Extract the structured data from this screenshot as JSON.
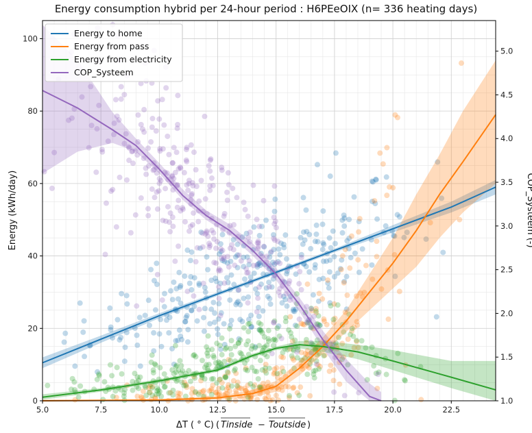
{
  "chart_data": {
    "type": "scatter",
    "title": "Energy consumption hybrid per 24-hour period : H6PEeOIX (n= 336 heating days)",
    "xlabel": "ΔT ( ° C)",
    "xlabel_formula_a": "Tinside",
    "xlabel_formula_b": "Toutside",
    "ylabel": "Energy (kWh/day)",
    "ylabel_right": "COP_Systeem (-)",
    "xlim": [
      5.0,
      24.4
    ],
    "ylim": [
      0,
      105
    ],
    "ylim_right": [
      1.0,
      5.35
    ],
    "x_ticks": [
      5.0,
      7.5,
      10.0,
      12.5,
      15.0,
      17.5,
      20.0,
      22.5
    ],
    "x_tick_labels": [
      "5.0",
      "7.5",
      "10.0",
      "12.5",
      "15.0",
      "17.5",
      "20.0",
      "22.5"
    ],
    "y_ticks": [
      0,
      20,
      40,
      60,
      80,
      100
    ],
    "y_tick_labels": [
      "0",
      "20",
      "40",
      "60",
      "80",
      "100"
    ],
    "y_right_ticks": [
      1.0,
      1.5,
      2.0,
      2.5,
      3.0,
      3.5,
      4.0,
      4.5,
      5.0
    ],
    "y_right_tick_labels": [
      "1.0",
      "1.5",
      "2.0",
      "2.5",
      "3.0",
      "3.5",
      "4.0",
      "4.5",
      "5.0"
    ],
    "grid": true,
    "legend_position": "top-left",
    "series": [
      {
        "name": "Energy to home",
        "color": "#1f77b4",
        "axis": "left",
        "trend_x": [
          5.0,
          7.5,
          10.0,
          12.5,
          15.0,
          17.5,
          20.0,
          22.5,
          24.4
        ],
        "trend_y": [
          10.5,
          17.0,
          23.5,
          29.5,
          35.5,
          41.5,
          47.5,
          53.5,
          59.0
        ],
        "band_lower": [
          9.0,
          16.0,
          22.8,
          29.0,
          35.0,
          41.0,
          46.5,
          52.0,
          57.0
        ],
        "band_upper": [
          12.0,
          18.0,
          24.2,
          30.0,
          36.0,
          42.0,
          48.5,
          55.0,
          61.0
        ],
        "scatter_center": [
          14.0,
          30.0
        ],
        "scatter_spread": [
          3.5,
          8.0
        ],
        "scatter_count": 330
      },
      {
        "name": "Energy from pass",
        "color": "#ff7f0e",
        "axis": "left",
        "trend_x": [
          5.0,
          10.0,
          12.5,
          14.0,
          15.0,
          16.0,
          17.0,
          18.0,
          19.0,
          20.0,
          21.0,
          22.0,
          23.0,
          24.4
        ],
        "trend_y": [
          0.0,
          0.2,
          0.8,
          2.0,
          4.0,
          9.0,
          15.0,
          22.0,
          30.0,
          38.0,
          47.0,
          57.0,
          66.0,
          79.0
        ],
        "band_lower": [
          0.0,
          0.0,
          0.3,
          1.0,
          2.5,
          7.0,
          13.0,
          19.0,
          25.0,
          31.0,
          37.0,
          45.0,
          52.0,
          60.0
        ],
        "band_upper": [
          0.3,
          0.5,
          1.3,
          3.0,
          5.5,
          11.0,
          17.5,
          25.0,
          35.0,
          45.0,
          57.0,
          68.0,
          80.0,
          94.0
        ],
        "scatter_center": [
          14.5,
          5.0
        ],
        "scatter_spread": [
          3.5,
          6.0
        ],
        "scatter_count": 300
      },
      {
        "name": "Energy from electricity",
        "color": "#2ca02c",
        "axis": "left",
        "trend_x": [
          5.0,
          7.5,
          10.0,
          12.5,
          14.0,
          15.0,
          16.0,
          17.0,
          18.5,
          20.0,
          22.5,
          24.4
        ],
        "trend_y": [
          1.0,
          3.0,
          5.5,
          8.5,
          12.5,
          14.5,
          15.5,
          15.0,
          13.5,
          11.0,
          6.5,
          3.0
        ],
        "band_lower": [
          0.3,
          2.5,
          5.0,
          8.0,
          12.0,
          14.0,
          14.5,
          13.5,
          11.5,
          8.5,
          3.5,
          0.0
        ],
        "band_upper": [
          1.8,
          3.5,
          6.0,
          9.0,
          13.0,
          15.0,
          16.5,
          16.5,
          15.5,
          14.0,
          11.0,
          11.0
        ],
        "scatter_center": [
          13.0,
          10.0
        ],
        "scatter_spread": [
          3.5,
          5.0
        ],
        "scatter_count": 330
      },
      {
        "name": "COP_Systeem",
        "color": "#9467bd",
        "axis": "right",
        "trend_x": [
          5.0,
          6.5,
          8.0,
          9.0,
          10.0,
          11.0,
          12.0,
          13.0,
          14.0,
          15.0,
          16.0,
          17.0,
          18.0,
          19.0,
          19.5
        ],
        "trend_y": [
          4.55,
          4.35,
          4.1,
          3.92,
          3.65,
          3.35,
          3.12,
          2.95,
          2.72,
          2.45,
          2.1,
          1.7,
          1.35,
          1.05,
          0.95
        ],
        "band_lower": [
          3.6,
          3.85,
          3.95,
          3.85,
          3.6,
          3.3,
          3.07,
          2.9,
          2.66,
          2.38,
          2.02,
          1.6,
          1.22,
          0.9,
          0.8
        ],
        "band_upper": [
          5.3,
          4.9,
          4.3,
          4.0,
          3.72,
          3.42,
          3.18,
          3.02,
          2.8,
          2.52,
          2.18,
          1.8,
          1.48,
          1.2,
          1.1
        ],
        "scatter_center": [
          11.5,
          3.1
        ],
        "scatter_spread": [
          3.0,
          0.5
        ],
        "scatter_count": 330
      }
    ]
  }
}
